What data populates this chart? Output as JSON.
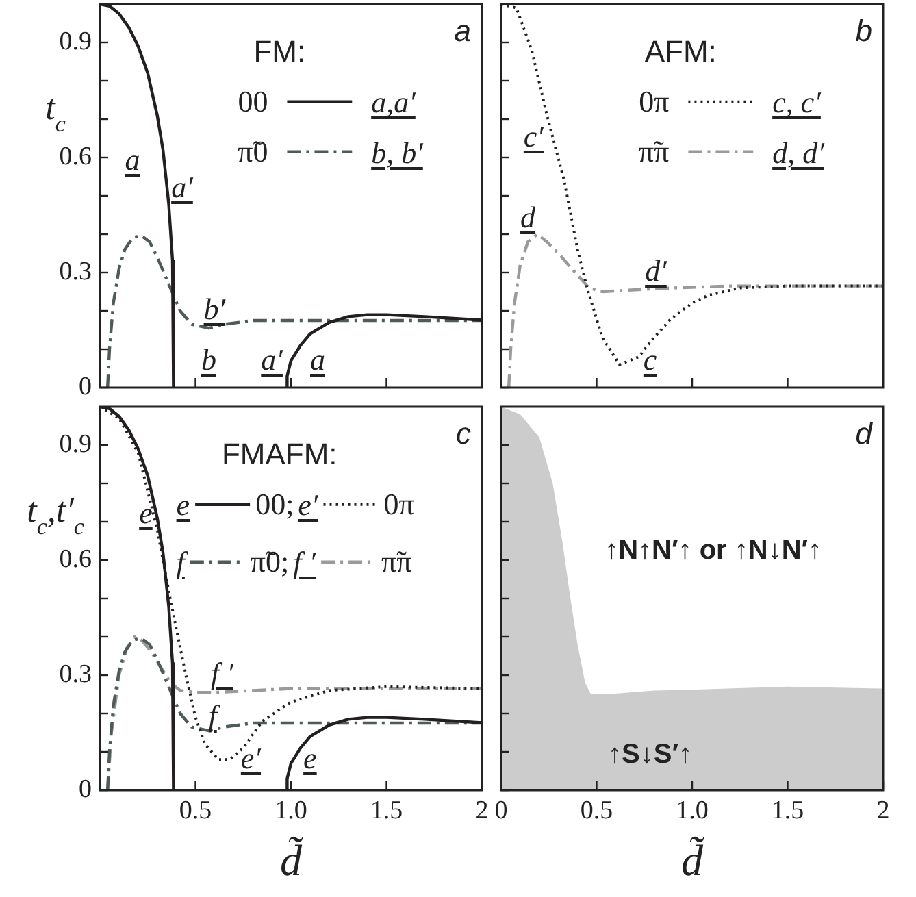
{
  "chart_data": [
    {
      "type": "line",
      "legend_title": "FM:",
      "ylabel": "t$_{c}$",
      "xlim": [
        0,
        2
      ],
      "ylim": [
        0,
        1
      ],
      "xticks": [
        0.5,
        1,
        1.5
      ],
      "yticks": [
        0,
        {
          "value": 0.1,
          "label": null
        },
        {
          "value": 0.2,
          "label": null
        },
        0.3,
        {
          "value": 0.4,
          "label": null
        },
        {
          "value": 0.5,
          "label": null
        },
        0.6,
        {
          "value": 0.7,
          "label": null
        },
        {
          "value": 0.8,
          "label": null
        },
        0.9
      ],
      "tick_labels": "y",
      "grid": false,
      "legend": "top right",
      "annotations": [
        "a",
        "a,a′",
        "b, b′",
        "a",
        "a′",
        "b′",
        "b",
        "a′",
        "a"
      ],
      "series": [
        {
          "name": "00",
          "color": "#231f20",
          "line_style": "solid",
          "x": [
            0,
            0.05,
            0.1,
            0.15,
            0.2,
            0.25,
            0.3,
            0.33,
            0.36,
            0.38,
            0.385,
            0.68,
            0.975,
            0.98,
            1.0,
            1.05,
            1.1,
            1.2,
            1.3,
            1.4,
            1.5,
            1.7,
            2
          ],
          "values": [
            1,
            0.995,
            0.975,
            0.94,
            0.89,
            0.82,
            0.71,
            0.62,
            0.48,
            0.33,
            0,
            null,
            0,
            0.03,
            0.07,
            0.11,
            0.14,
            0.17,
            0.185,
            0.19,
            0.19,
            0.185,
            0.176
          ]
        },
        {
          "name": "π̃0",
          "color": "#4f5a5a",
          "line_style": "dashed",
          "x": [
            0.04,
            0.05,
            0.07,
            0.1,
            0.13,
            0.17,
            0.2,
            0.22,
            0.26,
            0.3,
            0.36,
            0.42,
            0.48,
            0.57,
            0.65,
            0.8,
            1.0,
            1.5,
            2
          ],
          "values": [
            0,
            0.1,
            0.22,
            0.31,
            0.36,
            0.39,
            0.395,
            0.395,
            0.38,
            0.34,
            0.27,
            0.2,
            0.165,
            0.155,
            0.165,
            0.175,
            0.175,
            0.175,
            0.175
          ]
        }
      ]
    },
    {
      "type": "line",
      "legend_title": "AFM:",
      "xlim": [
        0,
        2
      ],
      "ylim": [
        0,
        1
      ],
      "xticks": [
        0.5,
        1,
        1.5
      ],
      "yticks": [
        0,
        {
          "value": 0.1,
          "label": null
        },
        {
          "value": 0.2,
          "label": null
        },
        0.3,
        {
          "value": 0.4,
          "label": null
        },
        {
          "value": 0.5,
          "label": null
        },
        0.6,
        {
          "value": 0.7,
          "label": null
        },
        {
          "value": 0.8,
          "label": null
        },
        0.9
      ],
      "tick_labels": false,
      "grid": false,
      "legend": "top right",
      "annotations": [
        "b",
        "c, c′",
        "d, d′",
        "c′",
        "d",
        "d′",
        "c"
      ],
      "series": [
        {
          "name": "0π",
          "color": "#231f20",
          "line_style": "dotted",
          "x": [
            0,
            0.08,
            0.16,
            0.24,
            0.33,
            0.4,
            0.45,
            0.53,
            0.62,
            0.72,
            0.8,
            0.89,
            1.0,
            1.08,
            1.25,
            1.5,
            2
          ],
          "values": [
            1,
            0.99,
            0.88,
            0.71,
            0.54,
            0.36,
            0.26,
            0.13,
            0.06,
            0.08,
            0.13,
            0.18,
            0.22,
            0.24,
            0.26,
            0.265,
            0.265
          ]
        },
        {
          "name": "π̃π",
          "color": "#9a9a9a",
          "line_style": "dashed",
          "x": [
            0.04,
            0.05,
            0.07,
            0.1,
            0.14,
            0.19,
            0.24,
            0.3,
            0.37,
            0.46,
            0.53,
            0.7,
            0.9,
            1.2,
            1.5,
            2
          ],
          "values": [
            0,
            0.1,
            0.22,
            0.32,
            0.38,
            0.4,
            0.38,
            0.35,
            0.31,
            0.26,
            0.25,
            0.255,
            0.26,
            0.265,
            0.265,
            0.265
          ]
        }
      ]
    },
    {
      "type": "line",
      "legend_title": "FMAFM:",
      "ylabel": "t$_{c}$,t′$_{c}$",
      "xlabel": "d̃",
      "xlim": [
        0,
        2
      ],
      "ylim": [
        0,
        1
      ],
      "xticks": [
        0.5,
        {
          "value": 1,
          "label": "1.0"
        },
        1.5,
        2
      ],
      "yticks": [
        0,
        {
          "value": 0.1,
          "label": null
        },
        {
          "value": 0.2,
          "label": null
        },
        0.3,
        {
          "value": 0.4,
          "label": null
        },
        {
          "value": 0.5,
          "label": null
        },
        0.6,
        {
          "value": 0.7,
          "label": null
        },
        {
          "value": 0.8,
          "label": null
        },
        0.9
      ],
      "grid": false,
      "legend": "top right",
      "annotations": [
        "c",
        "e",
        "e′",
        "f",
        "f ′",
        "e",
        "f ′",
        "f",
        "e′",
        "e"
      ],
      "series": [
        {
          "name": "00;",
          "color": "#231f20",
          "line_style": "solid",
          "x": [
            0,
            0.05,
            0.1,
            0.15,
            0.2,
            0.25,
            0.3,
            0.33,
            0.36,
            0.38,
            0.385,
            0.68,
            0.975,
            0.98,
            1.0,
            1.05,
            1.1,
            1.2,
            1.3,
            1.4,
            1.5,
            1.7,
            2
          ],
          "values": [
            1,
            0.995,
            0.975,
            0.94,
            0.89,
            0.82,
            0.71,
            0.62,
            0.48,
            0.33,
            0,
            null,
            0,
            0.03,
            0.07,
            0.11,
            0.14,
            0.17,
            0.185,
            0.19,
            0.19,
            0.185,
            0.176
          ]
        },
        {
          "name": "0π",
          "color": "#231f20",
          "line_style": "dotted",
          "x": [
            0,
            0.1,
            0.2,
            0.3,
            0.36,
            0.4,
            0.45,
            0.5,
            0.55,
            0.62,
            0.68,
            0.75,
            0.85,
            1.0,
            1.2,
            1.5,
            2
          ],
          "values": [
            1,
            0.97,
            0.88,
            0.68,
            0.52,
            0.42,
            0.3,
            0.19,
            0.12,
            0.08,
            0.08,
            0.11,
            0.18,
            0.23,
            0.26,
            0.27,
            0.265
          ]
        },
        {
          "name": "π̃0;",
          "color": "#4f5a5a",
          "line_style": "dashed",
          "x": [
            0.04,
            0.05,
            0.07,
            0.1,
            0.13,
            0.17,
            0.2,
            0.22,
            0.26,
            0.3,
            0.36,
            0.42,
            0.48,
            0.57,
            0.65,
            0.8,
            1.0,
            1.5,
            2
          ],
          "values": [
            0,
            0.1,
            0.22,
            0.31,
            0.36,
            0.39,
            0.395,
            0.395,
            0.38,
            0.34,
            0.27,
            0.2,
            0.165,
            0.155,
            0.165,
            0.175,
            0.175,
            0.175,
            0.175
          ]
        },
        {
          "name": "π̃π",
          "color": "#9a9a9a",
          "line_style": "dashed",
          "x": [
            0.04,
            0.06,
            0.1,
            0.14,
            0.18,
            0.22,
            0.27,
            0.32,
            0.37,
            0.42,
            0.5,
            0.6,
            0.8,
            1.0,
            1.5,
            2
          ],
          "values": [
            0,
            0.15,
            0.3,
            0.37,
            0.4,
            0.39,
            0.36,
            0.32,
            0.28,
            0.26,
            0.255,
            0.255,
            0.26,
            0.265,
            0.265,
            0.265
          ]
        }
      ]
    },
    {
      "type": "area",
      "xlabel": "d̃",
      "xlim": [
        0,
        2
      ],
      "ylim": [
        0,
        1
      ],
      "xticks": [
        0,
        0.5,
        {
          "value": 1,
          "label": "1.0"
        },
        1.5,
        2
      ],
      "yticks": [
        0,
        {
          "value": 0.1,
          "label": null
        },
        {
          "value": 0.2,
          "label": null
        },
        0.3,
        {
          "value": 0.4,
          "label": null
        },
        {
          "value": 0.5,
          "label": null
        },
        0.6,
        {
          "value": 0.7,
          "label": null
        },
        {
          "value": 0.8,
          "label": null
        },
        0.9
      ],
      "tick_labels": "x",
      "grid": false,
      "color": "#cccccc",
      "annotations": [
        "d",
        "↑N↑N′↑ or ↑N↓N′↑",
        "↑S↓S′↑"
      ],
      "x": [
        0,
        0.1,
        0.2,
        0.27,
        0.32,
        0.36,
        0.4,
        0.44,
        0.47,
        0.55,
        0.8,
        1.0,
        1.5,
        2
      ],
      "values": [
        1,
        0.98,
        0.92,
        0.8,
        0.65,
        0.51,
        0.38,
        0.28,
        0.25,
        0.25,
        0.26,
        0.262,
        0.27,
        0.265
      ]
    }
  ]
}
